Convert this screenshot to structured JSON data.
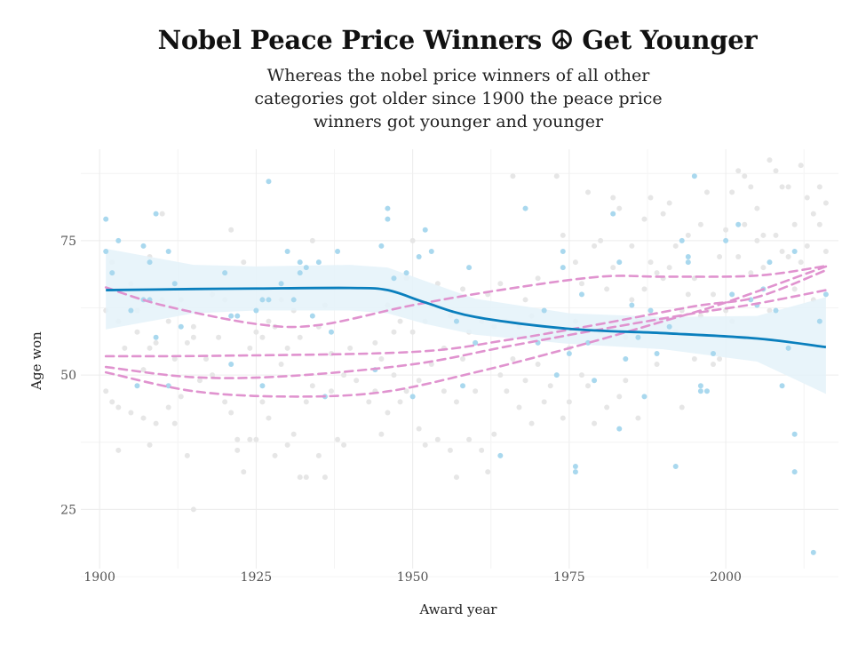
{
  "chart_data": {
    "type": "scatter",
    "title": "Nobel Peace Price Winners ☮ Get Younger",
    "subtitle": "Whereas the nobel price winners of all other categories got older since 1900 the peace price winners got younger and younger",
    "subtitle_lines": [
      "Whereas the nobel price winners of all other",
      "categories got older since 1900 the peace price",
      "winners got younger and younger"
    ],
    "xlabel": "Award year",
    "ylabel": "Age won",
    "xlim": [
      1897,
      2018
    ],
    "ylim": [
      14,
      92
    ],
    "xticks": [
      1900,
      1925,
      1950,
      1975,
      2000
    ],
    "yticks": [
      25,
      50,
      75
    ],
    "grid": true,
    "colors": {
      "peace_points": "#a9d8ee",
      "other_points": "#e6e6e6",
      "peace_trend": "#0a7fbd",
      "peace_band": "#e4f2f9",
      "other_trend": "#e093cf"
    },
    "peace_points": [
      [
        1901,
        79
      ],
      [
        1901,
        73
      ],
      [
        1902,
        69
      ],
      [
        1903,
        75
      ],
      [
        1905,
        62
      ],
      [
        1906,
        48
      ],
      [
        1907,
        74
      ],
      [
        1907,
        64
      ],
      [
        1908,
        64
      ],
      [
        1908,
        71
      ],
      [
        1909,
        57
      ],
      [
        1909,
        80
      ],
      [
        1911,
        48
      ],
      [
        1911,
        73
      ],
      [
        1912,
        67
      ],
      [
        1913,
        59
      ],
      [
        1920,
        69
      ],
      [
        1921,
        52
      ],
      [
        1921,
        61
      ],
      [
        1922,
        61
      ],
      [
        1925,
        62
      ],
      [
        1926,
        48
      ],
      [
        1926,
        64
      ],
      [
        1927,
        86
      ],
      [
        1927,
        64
      ],
      [
        1929,
        67
      ],
      [
        1930,
        73
      ],
      [
        1931,
        64
      ],
      [
        1932,
        71
      ],
      [
        1932,
        69
      ],
      [
        1933,
        70
      ],
      [
        1934,
        61
      ],
      [
        1935,
        71
      ],
      [
        1936,
        46
      ],
      [
        1937,
        58
      ],
      [
        1938,
        73
      ],
      [
        1944,
        51
      ],
      [
        1945,
        74
      ],
      [
        1946,
        81
      ],
      [
        1946,
        79
      ],
      [
        1947,
        68
      ],
      [
        1949,
        69
      ],
      [
        1950,
        46
      ],
      [
        1951,
        72
      ],
      [
        1952,
        77
      ],
      [
        1953,
        73
      ],
      [
        1957,
        60
      ],
      [
        1958,
        48
      ],
      [
        1959,
        70
      ],
      [
        1960,
        56
      ],
      [
        1964,
        35
      ],
      [
        1968,
        81
      ],
      [
        1970,
        56
      ],
      [
        1971,
        62
      ],
      [
        1973,
        50
      ],
      [
        1974,
        70
      ],
      [
        1974,
        73
      ],
      [
        1975,
        54
      ],
      [
        1976,
        33
      ],
      [
        1976,
        32
      ],
      [
        1977,
        65
      ],
      [
        1978,
        56
      ],
      [
        1979,
        49
      ],
      [
        1982,
        80
      ],
      [
        1983,
        71
      ],
      [
        1983,
        40
      ],
      [
        1984,
        53
      ],
      [
        1985,
        63
      ],
      [
        1986,
        57
      ],
      [
        1987,
        46
      ],
      [
        1988,
        62
      ],
      [
        1989,
        54
      ],
      [
        1991,
        59
      ],
      [
        1992,
        33
      ],
      [
        1993,
        75
      ],
      [
        1994,
        72
      ],
      [
        1994,
        71
      ],
      [
        1995,
        87
      ],
      [
        1996,
        48
      ],
      [
        1996,
        47
      ],
      [
        1997,
        47
      ],
      [
        1998,
        54
      ],
      [
        2000,
        75
      ],
      [
        2001,
        65
      ],
      [
        2002,
        78
      ],
      [
        2004,
        64
      ],
      [
        2005,
        63
      ],
      [
        2006,
        66
      ],
      [
        2007,
        71
      ],
      [
        2008,
        62
      ],
      [
        2009,
        48
      ],
      [
        2010,
        55
      ],
      [
        2011,
        73
      ],
      [
        2011,
        39
      ],
      [
        2011,
        32
      ],
      [
        2014,
        17
      ],
      [
        2015,
        60
      ],
      [
        2016,
        65
      ]
    ],
    "other_points": [
      [
        1901,
        62
      ],
      [
        1901,
        47
      ],
      [
        1902,
        71
      ],
      [
        1902,
        45
      ],
      [
        1903,
        60
      ],
      [
        1903,
        44
      ],
      [
        1903,
        36
      ],
      [
        1904,
        55
      ],
      [
        1905,
        67
      ],
      [
        1905,
        43
      ],
      [
        1906,
        58
      ],
      [
        1906,
        62
      ],
      [
        1907,
        51
      ],
      [
        1907,
        42
      ],
      [
        1908,
        72
      ],
      [
        1908,
        55
      ],
      [
        1908,
        37
      ],
      [
        1909,
        41
      ],
      [
        1909,
        56
      ],
      [
        1910,
        80
      ],
      [
        1910,
        64
      ],
      [
        1911,
        60
      ],
      [
        1911,
        44
      ],
      [
        1912,
        53
      ],
      [
        1912,
        41
      ],
      [
        1913,
        64
      ],
      [
        1913,
        46
      ],
      [
        1914,
        56
      ],
      [
        1914,
        35
      ],
      [
        1915,
        25
      ],
      [
        1915,
        57
      ],
      [
        1915,
        59
      ],
      [
        1916,
        49
      ],
      [
        1917,
        53
      ],
      [
        1918,
        65
      ],
      [
        1918,
        50
      ],
      [
        1919,
        57
      ],
      [
        1920,
        45
      ],
      [
        1920,
        64
      ],
      [
        1921,
        77
      ],
      [
        1921,
        43
      ],
      [
        1922,
        36
      ],
      [
        1922,
        38
      ],
      [
        1923,
        71
      ],
      [
        1923,
        32
      ],
      [
        1924,
        55
      ],
      [
        1924,
        38
      ],
      [
        1925,
        38
      ],
      [
        1925,
        58
      ],
      [
        1926,
        57
      ],
      [
        1926,
        45
      ],
      [
        1927,
        60
      ],
      [
        1927,
        42
      ],
      [
        1928,
        35
      ],
      [
        1928,
        59
      ],
      [
        1929,
        64
      ],
      [
        1929,
        52
      ],
      [
        1930,
        55
      ],
      [
        1930,
        37
      ],
      [
        1931,
        62
      ],
      [
        1931,
        39
      ],
      [
        1932,
        57
      ],
      [
        1932,
        31
      ],
      [
        1933,
        31
      ],
      [
        1933,
        45
      ],
      [
        1934,
        48
      ],
      [
        1934,
        75
      ],
      [
        1935,
        59
      ],
      [
        1935,
        35
      ],
      [
        1936,
        63
      ],
      [
        1936,
        31
      ],
      [
        1937,
        54
      ],
      [
        1937,
        47
      ],
      [
        1938,
        38
      ],
      [
        1939,
        50
      ],
      [
        1939,
        37
      ],
      [
        1940,
        55
      ],
      [
        1941,
        49
      ],
      [
        1943,
        45
      ],
      [
        1944,
        56
      ],
      [
        1944,
        47
      ],
      [
        1945,
        53
      ],
      [
        1945,
        39
      ],
      [
        1946,
        63
      ],
      [
        1946,
        43
      ],
      [
        1947,
        58
      ],
      [
        1947,
        50
      ],
      [
        1948,
        45
      ],
      [
        1948,
        60
      ],
      [
        1949,
        47
      ],
      [
        1949,
        68
      ],
      [
        1950,
        58
      ],
      [
        1950,
        75
      ],
      [
        1951,
        49
      ],
      [
        1951,
        40
      ],
      [
        1952,
        60
      ],
      [
        1952,
        37
      ],
      [
        1953,
        52
      ],
      [
        1953,
        63
      ],
      [
        1954,
        67
      ],
      [
        1954,
        38
      ],
      [
        1955,
        55
      ],
      [
        1955,
        47
      ],
      [
        1956,
        61
      ],
      [
        1956,
        36
      ],
      [
        1957,
        31
      ],
      [
        1957,
        45
      ],
      [
        1958,
        53
      ],
      [
        1958,
        66
      ],
      [
        1959,
        38
      ],
      [
        1959,
        58
      ],
      [
        1960,
        56
      ],
      [
        1960,
        47
      ],
      [
        1961,
        60
      ],
      [
        1961,
        36
      ],
      [
        1962,
        32
      ],
      [
        1962,
        65
      ],
      [
        1963,
        59
      ],
      [
        1963,
        39
      ],
      [
        1964,
        67
      ],
      [
        1964,
        50
      ],
      [
        1965,
        60
      ],
      [
        1965,
        47
      ],
      [
        1966,
        87
      ],
      [
        1966,
        53
      ],
      [
        1967,
        59
      ],
      [
        1967,
        44
      ],
      [
        1968,
        49
      ],
      [
        1968,
        64
      ],
      [
        1969,
        41
      ],
      [
        1969,
        61
      ],
      [
        1970,
        52
      ],
      [
        1970,
        68
      ],
      [
        1971,
        59
      ],
      [
        1971,
        45
      ],
      [
        1972,
        58
      ],
      [
        1972,
        48
      ],
      [
        1973,
        87
      ],
      [
        1973,
        57
      ],
      [
        1974,
        76
      ],
      [
        1974,
        42
      ],
      [
        1975,
        45
      ],
      [
        1975,
        55
      ],
      [
        1976,
        60
      ],
      [
        1976,
        71
      ],
      [
        1977,
        67
      ],
      [
        1977,
        50
      ],
      [
        1978,
        84
      ],
      [
        1978,
        48
      ],
      [
        1979,
        74
      ],
      [
        1979,
        41
      ],
      [
        1980,
        58
      ],
      [
        1980,
        75
      ],
      [
        1981,
        66
      ],
      [
        1981,
        44
      ],
      [
        1982,
        83
      ],
      [
        1982,
        70
      ],
      [
        1983,
        81
      ],
      [
        1983,
        46
      ],
      [
        1984,
        57
      ],
      [
        1984,
        49
      ],
      [
        1985,
        64
      ],
      [
        1985,
        74
      ],
      [
        1986,
        60
      ],
      [
        1986,
        42
      ],
      [
        1987,
        66
      ],
      [
        1987,
        79
      ],
      [
        1988,
        71
      ],
      [
        1988,
        83
      ],
      [
        1989,
        69
      ],
      [
        1989,
        52
      ],
      [
        1990,
        68
      ],
      [
        1990,
        80
      ],
      [
        1991,
        70
      ],
      [
        1991,
        82
      ],
      [
        1992,
        58
      ],
      [
        1992,
        74
      ],
      [
        1993,
        62
      ],
      [
        1993,
        44
      ],
      [
        1994,
        65
      ],
      [
        1994,
        76
      ],
      [
        1995,
        68
      ],
      [
        1995,
        53
      ],
      [
        1996,
        78
      ],
      [
        1996,
        61
      ],
      [
        1997,
        62
      ],
      [
        1997,
        84
      ],
      [
        1998,
        65
      ],
      [
        1998,
        52
      ],
      [
        1999,
        72
      ],
      [
        1999,
        53
      ],
      [
        2000,
        77
      ],
      [
        2000,
        62
      ],
      [
        2001,
        60
      ],
      [
        2001,
        84
      ],
      [
        2002,
        88
      ],
      [
        2002,
        72
      ],
      [
        2003,
        87
      ],
      [
        2003,
        78
      ],
      [
        2004,
        85
      ],
      [
        2004,
        69
      ],
      [
        2005,
        75
      ],
      [
        2005,
        81
      ],
      [
        2006,
        76
      ],
      [
        2006,
        70
      ],
      [
        2007,
        90
      ],
      [
        2007,
        62
      ],
      [
        2008,
        76
      ],
      [
        2008,
        88
      ],
      [
        2009,
        73
      ],
      [
        2009,
        85
      ],
      [
        2010,
        72
      ],
      [
        2010,
        85
      ],
      [
        2011,
        78
      ],
      [
        2011,
        66
      ],
      [
        2012,
        89
      ],
      [
        2012,
        71
      ],
      [
        2013,
        74
      ],
      [
        2013,
        83
      ],
      [
        2014,
        80
      ],
      [
        2014,
        64
      ],
      [
        2015,
        85
      ],
      [
        2015,
        78
      ],
      [
        2016,
        82
      ],
      [
        2016,
        73
      ]
    ],
    "peace_trend": [
      [
        1901,
        65.8
      ],
      [
        1915,
        66.0
      ],
      [
        1925,
        66.1
      ],
      [
        1940,
        66.2
      ],
      [
        1946,
        65.8
      ],
      [
        1952,
        63.5
      ],
      [
        1960,
        60.8
      ],
      [
        1975,
        58.6
      ],
      [
        1990,
        57.8
      ],
      [
        2005,
        56.8
      ],
      [
        2016,
        55.2
      ]
    ],
    "peace_band_upper": [
      [
        1901,
        73.5
      ],
      [
        1915,
        70.5
      ],
      [
        1925,
        70.2
      ],
      [
        1940,
        70.5
      ],
      [
        1946,
        70.0
      ],
      [
        1952,
        67.5
      ],
      [
        1960,
        64.2
      ],
      [
        1975,
        61.5
      ],
      [
        1990,
        60.8
      ],
      [
        2005,
        61.0
      ],
      [
        2016,
        64.5
      ]
    ],
    "peace_band_lower": [
      [
        1901,
        58.5
      ],
      [
        1915,
        61.5
      ],
      [
        1925,
        62.0
      ],
      [
        1940,
        62.0
      ],
      [
        1946,
        61.5
      ],
      [
        1952,
        59.5
      ],
      [
        1960,
        57.5
      ],
      [
        1975,
        55.8
      ],
      [
        1990,
        54.8
      ],
      [
        2005,
        52.5
      ],
      [
        2016,
        46.5
      ]
    ],
    "other_trends": [
      {
        "values": [
          [
            1901,
            66.3
          ],
          [
            1910,
            63.0
          ],
          [
            1925,
            59.5
          ],
          [
            1935,
            59.3
          ],
          [
            1950,
            63.0
          ],
          [
            1965,
            66.0
          ],
          [
            1980,
            68.3
          ],
          [
            1990,
            68.3
          ],
          [
            2005,
            68.5
          ],
          [
            2016,
            70.3
          ]
        ]
      },
      {
        "values": [
          [
            1901,
            53.5
          ],
          [
            1920,
            53.6
          ],
          [
            1950,
            54.3
          ],
          [
            1965,
            56.5
          ],
          [
            1980,
            59.5
          ],
          [
            1995,
            62.8
          ],
          [
            2005,
            64.5
          ],
          [
            2016,
            69.5
          ]
        ]
      },
      {
        "values": [
          [
            1901,
            51.5
          ],
          [
            1915,
            49.6
          ],
          [
            1930,
            49.8
          ],
          [
            1950,
            52.0
          ],
          [
            1965,
            55.3
          ],
          [
            1980,
            58.5
          ],
          [
            1995,
            61.5
          ],
          [
            2005,
            63.3
          ],
          [
            2016,
            65.8
          ]
        ]
      },
      {
        "values": [
          [
            1901,
            50.5
          ],
          [
            1915,
            47.0
          ],
          [
            1930,
            46.0
          ],
          [
            1945,
            46.8
          ],
          [
            1960,
            50.5
          ],
          [
            1975,
            55.0
          ],
          [
            1990,
            60.0
          ],
          [
            2000,
            63.5
          ],
          [
            2016,
            70.2
          ]
        ]
      }
    ]
  }
}
